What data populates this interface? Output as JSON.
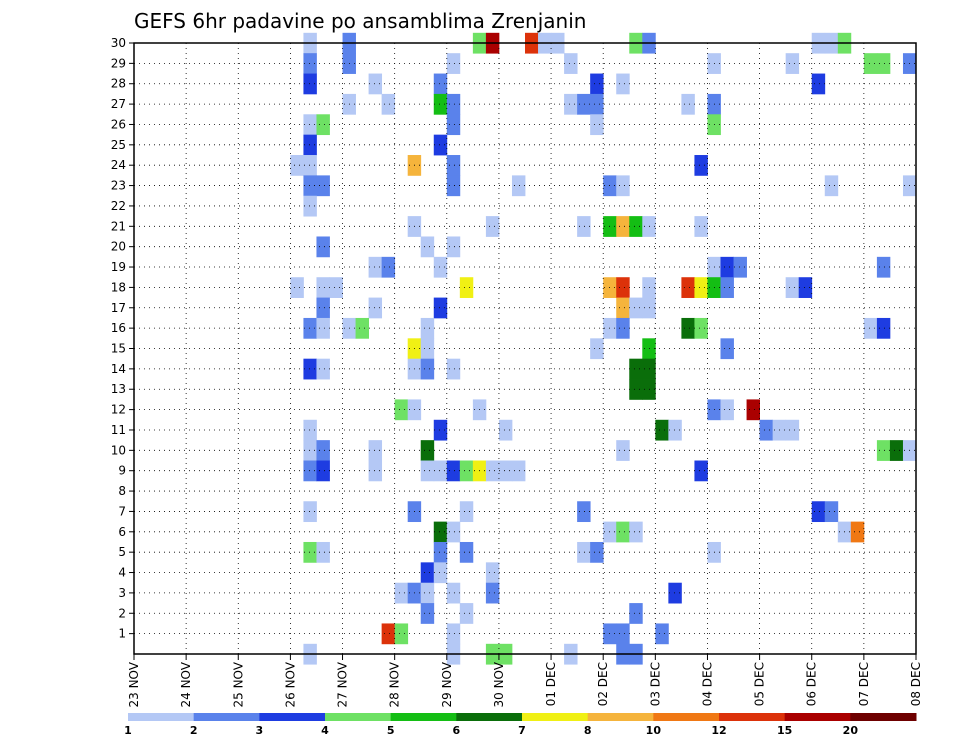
{
  "chart_data": {
    "type": "heatmap",
    "title": "GEFS 6hr padavine po ansamblima Zrenjanin",
    "xlabel": "",
    "ylabel": "",
    "x_tick_labels": [
      "23 NOV",
      "24 NOV",
      "25 NOV",
      "26 NOV",
      "27 NOV",
      "28 NOV",
      "29 NOV",
      "30 NOV",
      "01 DEC",
      "02 DEC",
      "03 DEC",
      "04 DEC",
      "05 DEC",
      "06 DEC",
      "07 DEC",
      "08 DEC"
    ],
    "x_range": [
      0,
      60
    ],
    "y_tick_labels": [
      "1",
      "2",
      "3",
      "4",
      "5",
      "6",
      "7",
      "8",
      "9",
      "10",
      "11",
      "12",
      "13",
      "14",
      "15",
      "16",
      "17",
      "18",
      "19",
      "20",
      "21",
      "22",
      "23",
      "24",
      "25",
      "26",
      "27",
      "28",
      "29",
      "30"
    ],
    "y_range": [
      0,
      30
    ],
    "x_unit": "6-hour step from 23 NOV 00z",
    "y_unit": "ensemble member",
    "grid": true,
    "colorbar": {
      "labels": [
        "1",
        "2",
        "3",
        "4",
        "5",
        "6",
        "7",
        "8",
        "10",
        "12",
        "15",
        "20"
      ],
      "colors": [
        "#b4c8f5",
        "#5a82eb",
        "#1e3ce1",
        "#6ee164",
        "#14be14",
        "#0a6e0a",
        "#f0f014",
        "#f5b43c",
        "#f07814",
        "#dc320a",
        "#aa0000",
        "#6e0000"
      ]
    },
    "cells": [
      [
        13,
        30,
        "#b4c8f5"
      ],
      [
        16,
        30,
        "#5a82eb"
      ],
      [
        26,
        30,
        "#6ee164"
      ],
      [
        27,
        30,
        "#aa0000"
      ],
      [
        30,
        30,
        "#dc320a"
      ],
      [
        31,
        30,
        "#b4c8f5"
      ],
      [
        32,
        30,
        "#b4c8f5"
      ],
      [
        38,
        30,
        "#6ee164"
      ],
      [
        39,
        30,
        "#5a82eb"
      ],
      [
        52,
        30,
        "#b4c8f5"
      ],
      [
        53,
        30,
        "#b4c8f5"
      ],
      [
        54,
        30,
        "#6ee164"
      ],
      [
        13,
        29,
        "#5a82eb"
      ],
      [
        16,
        29,
        "#5a82eb"
      ],
      [
        24,
        29,
        "#b4c8f5"
      ],
      [
        33,
        29,
        "#b4c8f5"
      ],
      [
        44,
        29,
        "#b4c8f5"
      ],
      [
        50,
        29,
        "#b4c8f5"
      ],
      [
        56,
        29,
        "#6ee164"
      ],
      [
        57,
        29,
        "#6ee164"
      ],
      [
        59,
        29,
        "#5a82eb"
      ],
      [
        13,
        28,
        "#1e3ce1"
      ],
      [
        18,
        28,
        "#b4c8f5"
      ],
      [
        23,
        28,
        "#5a82eb"
      ],
      [
        35,
        28,
        "#1e3ce1"
      ],
      [
        37,
        28,
        "#b4c8f5"
      ],
      [
        52,
        28,
        "#1e3ce1"
      ],
      [
        16,
        27,
        "#b4c8f5"
      ],
      [
        19,
        27,
        "#b4c8f5"
      ],
      [
        23,
        27,
        "#14be14"
      ],
      [
        24,
        27,
        "#5a82eb"
      ],
      [
        33,
        27,
        "#b4c8f5"
      ],
      [
        34,
        27,
        "#5a82eb"
      ],
      [
        35,
        27,
        "#5a82eb"
      ],
      [
        42,
        27,
        "#b4c8f5"
      ],
      [
        44,
        27,
        "#5a82eb"
      ],
      [
        13,
        26,
        "#b4c8f5"
      ],
      [
        14,
        26,
        "#6ee164"
      ],
      [
        24,
        26,
        "#5a82eb"
      ],
      [
        35,
        26,
        "#b4c8f5"
      ],
      [
        44,
        26,
        "#6ee164"
      ],
      [
        13,
        25,
        "#1e3ce1"
      ],
      [
        23,
        25,
        "#1e3ce1"
      ],
      [
        12,
        24,
        "#b4c8f5"
      ],
      [
        13,
        24,
        "#b4c8f5"
      ],
      [
        21,
        24,
        "#f5b43c"
      ],
      [
        24,
        24,
        "#5a82eb"
      ],
      [
        43,
        24,
        "#1e3ce1"
      ],
      [
        13,
        23,
        "#5a82eb"
      ],
      [
        14,
        23,
        "#5a82eb"
      ],
      [
        24,
        23,
        "#5a82eb"
      ],
      [
        29,
        23,
        "#b4c8f5"
      ],
      [
        36,
        23,
        "#5a82eb"
      ],
      [
        37,
        23,
        "#b4c8f5"
      ],
      [
        53,
        23,
        "#b4c8f5"
      ],
      [
        59,
        23,
        "#b4c8f5"
      ],
      [
        13,
        22,
        "#b4c8f5"
      ],
      [
        21,
        21,
        "#b4c8f5"
      ],
      [
        27,
        21,
        "#b4c8f5"
      ],
      [
        34,
        21,
        "#b4c8f5"
      ],
      [
        36,
        21,
        "#14be14"
      ],
      [
        37,
        21,
        "#f5b43c"
      ],
      [
        38,
        21,
        "#14be14"
      ],
      [
        39,
        21,
        "#b4c8f5"
      ],
      [
        43,
        21,
        "#b4c8f5"
      ],
      [
        14,
        20,
        "#5a82eb"
      ],
      [
        22,
        20,
        "#b4c8f5"
      ],
      [
        24,
        20,
        "#b4c8f5"
      ],
      [
        18,
        19,
        "#b4c8f5"
      ],
      [
        19,
        19,
        "#5a82eb"
      ],
      [
        23,
        19,
        "#b4c8f5"
      ],
      [
        44,
        19,
        "#b4c8f5"
      ],
      [
        45,
        19,
        "#1e3ce1"
      ],
      [
        46,
        19,
        "#5a82eb"
      ],
      [
        57,
        19,
        "#5a82eb"
      ],
      [
        12,
        18,
        "#b4c8f5"
      ],
      [
        14,
        18,
        "#b4c8f5"
      ],
      [
        15,
        18,
        "#b4c8f5"
      ],
      [
        25,
        18,
        "#f0f014"
      ],
      [
        36,
        18,
        "#f5b43c"
      ],
      [
        37,
        18,
        "#dc320a"
      ],
      [
        39,
        18,
        "#b4c8f5"
      ],
      [
        42,
        18,
        "#dc320a"
      ],
      [
        43,
        18,
        "#f0f014"
      ],
      [
        44,
        18,
        "#14be14"
      ],
      [
        45,
        18,
        "#5a82eb"
      ],
      [
        50,
        18,
        "#b4c8f5"
      ],
      [
        51,
        18,
        "#1e3ce1"
      ],
      [
        14,
        17,
        "#5a82eb"
      ],
      [
        18,
        17,
        "#b4c8f5"
      ],
      [
        23,
        17,
        "#1e3ce1"
      ],
      [
        37,
        17,
        "#f5b43c"
      ],
      [
        38,
        17,
        "#b4c8f5"
      ],
      [
        39,
        17,
        "#b4c8f5"
      ],
      [
        13,
        16,
        "#5a82eb"
      ],
      [
        14,
        16,
        "#b4c8f5"
      ],
      [
        16,
        16,
        "#b4c8f5"
      ],
      [
        17,
        16,
        "#6ee164"
      ],
      [
        22,
        16,
        "#b4c8f5"
      ],
      [
        36,
        16,
        "#b4c8f5"
      ],
      [
        37,
        16,
        "#5a82eb"
      ],
      [
        42,
        16,
        "#0a6e0a"
      ],
      [
        43,
        16,
        "#6ee164"
      ],
      [
        56,
        16,
        "#b4c8f5"
      ],
      [
        57,
        16,
        "#1e3ce1"
      ],
      [
        21,
        15,
        "#f0f014"
      ],
      [
        22,
        15,
        "#b4c8f5"
      ],
      [
        35,
        15,
        "#b4c8f5"
      ],
      [
        39,
        15,
        "#14be14"
      ],
      [
        45,
        15,
        "#5a82eb"
      ],
      [
        13,
        14,
        "#1e3ce1"
      ],
      [
        14,
        14,
        "#b4c8f5"
      ],
      [
        21,
        14,
        "#b4c8f5"
      ],
      [
        22,
        14,
        "#5a82eb"
      ],
      [
        24,
        14,
        "#b4c8f5"
      ],
      [
        38,
        14,
        "#0a6e0a"
      ],
      [
        39,
        14,
        "#0a6e0a"
      ],
      [
        38,
        13,
        "#0a6e0a"
      ],
      [
        39,
        13,
        "#0a6e0a"
      ],
      [
        20,
        12,
        "#6ee164"
      ],
      [
        21,
        12,
        "#b4c8f5"
      ],
      [
        26,
        12,
        "#b4c8f5"
      ],
      [
        44,
        12,
        "#5a82eb"
      ],
      [
        45,
        12,
        "#b4c8f5"
      ],
      [
        47,
        12,
        "#aa0000"
      ],
      [
        13,
        11,
        "#b4c8f5"
      ],
      [
        23,
        11,
        "#1e3ce1"
      ],
      [
        28,
        11,
        "#b4c8f5"
      ],
      [
        40,
        11,
        "#0a6e0a"
      ],
      [
        41,
        11,
        "#b4c8f5"
      ],
      [
        48,
        11,
        "#5a82eb"
      ],
      [
        49,
        11,
        "#b4c8f5"
      ],
      [
        50,
        11,
        "#b4c8f5"
      ],
      [
        13,
        10,
        "#b4c8f5"
      ],
      [
        14,
        10,
        "#5a82eb"
      ],
      [
        18,
        10,
        "#b4c8f5"
      ],
      [
        22,
        10,
        "#0a6e0a"
      ],
      [
        37,
        10,
        "#b4c8f5"
      ],
      [
        57,
        10,
        "#6ee164"
      ],
      [
        58,
        10,
        "#0a6e0a"
      ],
      [
        59,
        10,
        "#b4c8f5"
      ],
      [
        13,
        9,
        "#5a82eb"
      ],
      [
        14,
        9,
        "#1e3ce1"
      ],
      [
        18,
        9,
        "#b4c8f5"
      ],
      [
        22,
        9,
        "#b4c8f5"
      ],
      [
        23,
        9,
        "#b4c8f5"
      ],
      [
        24,
        9,
        "#1e3ce1"
      ],
      [
        25,
        9,
        "#6ee164"
      ],
      [
        26,
        9,
        "#f0f014"
      ],
      [
        27,
        9,
        "#b4c8f5"
      ],
      [
        28,
        9,
        "#b4c8f5"
      ],
      [
        29,
        9,
        "#b4c8f5"
      ],
      [
        43,
        9,
        "#1e3ce1"
      ],
      [
        13,
        7,
        "#b4c8f5"
      ],
      [
        21,
        7,
        "#5a82eb"
      ],
      [
        25,
        7,
        "#b4c8f5"
      ],
      [
        34,
        7,
        "#5a82eb"
      ],
      [
        52,
        7,
        "#1e3ce1"
      ],
      [
        53,
        7,
        "#5a82eb"
      ],
      [
        23,
        6,
        "#0a6e0a"
      ],
      [
        24,
        6,
        "#b4c8f5"
      ],
      [
        36,
        6,
        "#b4c8f5"
      ],
      [
        37,
        6,
        "#6ee164"
      ],
      [
        38,
        6,
        "#b4c8f5"
      ],
      [
        54,
        6,
        "#b4c8f5"
      ],
      [
        55,
        6,
        "#f07814"
      ],
      [
        13,
        5,
        "#6ee164"
      ],
      [
        14,
        5,
        "#b4c8f5"
      ],
      [
        23,
        5,
        "#5a82eb"
      ],
      [
        25,
        5,
        "#5a82eb"
      ],
      [
        34,
        5,
        "#b4c8f5"
      ],
      [
        35,
        5,
        "#5a82eb"
      ],
      [
        44,
        5,
        "#b4c8f5"
      ],
      [
        22,
        4,
        "#1e3ce1"
      ],
      [
        23,
        4,
        "#b4c8f5"
      ],
      [
        27,
        4,
        "#b4c8f5"
      ],
      [
        20,
        3,
        "#b4c8f5"
      ],
      [
        21,
        3,
        "#5a82eb"
      ],
      [
        22,
        3,
        "#b4c8f5"
      ],
      [
        24,
        3,
        "#b4c8f5"
      ],
      [
        27,
        3,
        "#5a82eb"
      ],
      [
        41,
        3,
        "#1e3ce1"
      ],
      [
        22,
        2,
        "#5a82eb"
      ],
      [
        25,
        2,
        "#b4c8f5"
      ],
      [
        38,
        2,
        "#5a82eb"
      ],
      [
        19,
        1,
        "#dc320a"
      ],
      [
        20,
        1,
        "#6ee164"
      ],
      [
        24,
        1,
        "#b4c8f5"
      ],
      [
        36,
        1,
        "#5a82eb"
      ],
      [
        37,
        1,
        "#5a82eb"
      ],
      [
        40,
        1,
        "#5a82eb"
      ],
      [
        24,
        0,
        "#b4c8f5"
      ],
      [
        13,
        0,
        "#b4c8f5"
      ],
      [
        27,
        0,
        "#6ee164"
      ],
      [
        28,
        0,
        "#6ee164"
      ],
      [
        33,
        0,
        "#b4c8f5"
      ],
      [
        37,
        0,
        "#5a82eb"
      ],
      [
        38,
        0,
        "#5a82eb"
      ]
    ]
  }
}
